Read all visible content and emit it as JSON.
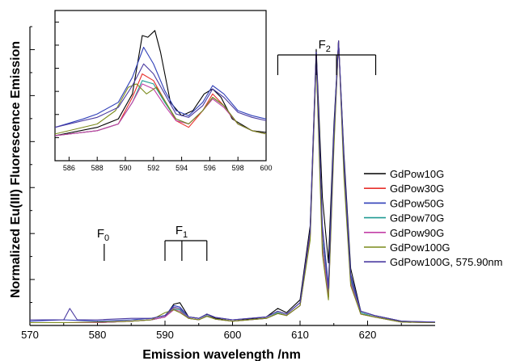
{
  "chart_data": {
    "type": "line",
    "title": "",
    "xlabel": "Emission wavelength /nm",
    "ylabel": "Normalized Eu(III) Fluorescence Emission",
    "xlim": [
      570,
      630
    ],
    "ylim": [
      0,
      1.05
    ],
    "xticks": [
      "570",
      "580",
      "590",
      "600",
      "610",
      "620"
    ],
    "y_tick_labels": false,
    "grid": false,
    "legend_position": "right",
    "colors": {
      "GdPow10G": "#000000",
      "GdPow30G": "#e8302c",
      "GdPow50G": "#2f3fb8",
      "GdPow70G": "#1f9a93",
      "GdPow90G": "#c23fa6",
      "GdPow100G": "#7a8a1a",
      "GdPow100G, 575.90nm": "#4a3aa0"
    },
    "series": [
      {
        "name": "GdPow10G",
        "x": [
          570,
          575,
          580,
          585,
          588,
          590,
          591.3,
          592.2,
          593.5,
          595,
          596.2,
          597.5,
          600,
          605,
          606.7,
          608,
          610,
          611.5,
          612.4,
          613.3,
          614.2,
          615,
          615.7,
          616.5,
          617.5,
          619,
          621,
          625,
          630
        ],
        "y": [
          0.01,
          0.01,
          0.01,
          0.015,
          0.02,
          0.03,
          0.075,
          0.08,
          0.03,
          0.025,
          0.04,
          0.025,
          0.015,
          0.03,
          0.06,
          0.045,
          0.09,
          0.35,
          0.97,
          0.45,
          0.22,
          0.7,
          1.0,
          0.6,
          0.2,
          0.05,
          0.035,
          0.015,
          0.01
        ]
      },
      {
        "name": "GdPow30G",
        "x": [
          570,
          575,
          580,
          585,
          588,
          590,
          591.3,
          592.2,
          593.5,
          595,
          596.2,
          597.5,
          600,
          605,
          606.7,
          608,
          610,
          611.5,
          612.4,
          613.3,
          614.2,
          615,
          615.7,
          616.5,
          617.5,
          619,
          621,
          625,
          630
        ],
        "y": [
          0.01,
          0.01,
          0.01,
          0.015,
          0.02,
          0.03,
          0.06,
          0.055,
          0.025,
          0.02,
          0.035,
          0.022,
          0.015,
          0.025,
          0.045,
          0.035,
          0.07,
          0.32,
          0.95,
          0.3,
          0.1,
          0.65,
          1.0,
          0.55,
          0.15,
          0.04,
          0.03,
          0.012,
          0.01
        ]
      },
      {
        "name": "GdPow50G",
        "x": [
          570,
          575,
          580,
          585,
          588,
          590,
          591.3,
          592.2,
          593.5,
          595,
          596.2,
          597.5,
          600,
          605,
          606.7,
          608,
          610,
          611.5,
          612.4,
          613.3,
          614.2,
          615,
          615.7,
          616.5,
          617.5,
          619,
          621,
          625,
          630
        ],
        "y": [
          0.015,
          0.02,
          0.015,
          0.02,
          0.025,
          0.035,
          0.07,
          0.065,
          0.03,
          0.025,
          0.04,
          0.028,
          0.02,
          0.03,
          0.05,
          0.04,
          0.08,
          0.33,
          0.96,
          0.35,
          0.14,
          0.68,
          1.0,
          0.58,
          0.18,
          0.05,
          0.035,
          0.015,
          0.012
        ]
      },
      {
        "name": "GdPow70G",
        "x": [
          570,
          575,
          580,
          585,
          588,
          590,
          591.3,
          592.2,
          593.5,
          595,
          596.2,
          597.5,
          600,
          605,
          606.7,
          608,
          610,
          611.5,
          612.4,
          613.3,
          614.2,
          615,
          615.7,
          616.5,
          617.5,
          619,
          621,
          625,
          630
        ],
        "y": [
          0.01,
          0.01,
          0.01,
          0.015,
          0.02,
          0.03,
          0.058,
          0.055,
          0.025,
          0.02,
          0.035,
          0.022,
          0.015,
          0.025,
          0.045,
          0.035,
          0.07,
          0.32,
          0.94,
          0.3,
          0.12,
          0.66,
          1.0,
          0.56,
          0.16,
          0.045,
          0.03,
          0.012,
          0.01
        ]
      },
      {
        "name": "GdPow90G",
        "x": [
          570,
          575,
          580,
          585,
          588,
          590,
          591.3,
          592.2,
          593.5,
          595,
          596.2,
          597.5,
          600,
          605,
          606.7,
          608,
          610,
          611.5,
          612.4,
          613.3,
          614.2,
          615,
          615.7,
          616.5,
          617.5,
          619,
          621,
          625,
          630
        ],
        "y": [
          0.01,
          0.01,
          0.01,
          0.015,
          0.02,
          0.03,
          0.055,
          0.05,
          0.025,
          0.02,
          0.033,
          0.022,
          0.015,
          0.025,
          0.042,
          0.035,
          0.07,
          0.31,
          0.95,
          0.28,
          0.1,
          0.64,
          1.0,
          0.55,
          0.15,
          0.04,
          0.03,
          0.012,
          0.01
        ]
      },
      {
        "name": "GdPow100G",
        "x": [
          570,
          575,
          580,
          585,
          588,
          590,
          591.3,
          592.2,
          593.5,
          595,
          596.2,
          597.5,
          600,
          605,
          606.7,
          608,
          610,
          611.5,
          612.4,
          613.3,
          614.2,
          615,
          615.7,
          616.5,
          617.5,
          619,
          621,
          625,
          630
        ],
        "y": [
          0.01,
          0.01,
          0.012,
          0.015,
          0.02,
          0.045,
          0.055,
          0.045,
          0.025,
          0.02,
          0.032,
          0.022,
          0.015,
          0.025,
          0.042,
          0.035,
          0.07,
          0.3,
          0.93,
          0.25,
          0.09,
          0.62,
          1.0,
          0.52,
          0.14,
          0.04,
          0.03,
          0.012,
          0.01
        ]
      },
      {
        "name": "GdPow100G, 575.90nm",
        "x": [
          570,
          575,
          575.9,
          577,
          580,
          585,
          588,
          590,
          591.3,
          592.2,
          593.5,
          595,
          596.2,
          597.5,
          600,
          605,
          606.7,
          608,
          610,
          611.5,
          612.4,
          613.3,
          614.2,
          615,
          615.7,
          616.5,
          617.5,
          619,
          621,
          625,
          630
        ],
        "y": [
          0.02,
          0.02,
          0.06,
          0.02,
          0.02,
          0.025,
          0.025,
          0.035,
          0.065,
          0.06,
          0.03,
          0.025,
          0.04,
          0.028,
          0.02,
          0.03,
          0.05,
          0.04,
          0.08,
          0.33,
          0.96,
          0.34,
          0.13,
          0.67,
          1.0,
          0.57,
          0.17,
          0.05,
          0.035,
          0.015,
          0.012
        ]
      }
    ],
    "annotations": [
      {
        "label": "F",
        "subscript": "0",
        "lines_x": [
          581
        ]
      },
      {
        "label": "F",
        "subscript": "1",
        "lines_x": [
          590,
          592.5,
          596.2
        ]
      },
      {
        "label": "F",
        "subscript": "2",
        "lines_x": [
          606.7,
          612.4,
          615.4,
          621.2
        ]
      }
    ],
    "inset": {
      "type": "line",
      "xlim": [
        585,
        600
      ],
      "ylim": [
        0,
        0.09
      ],
      "xticks": [
        "586",
        "588",
        "590",
        "592",
        "594",
        "596",
        "598",
        "600"
      ],
      "series": [
        {
          "name": "GdPow10G",
          "x": [
            585,
            588,
            589.5,
            590.5,
            591.2,
            591.6,
            592.1,
            592.5,
            593.2,
            594,
            594.8,
            595.6,
            596.2,
            596.8,
            597.6,
            599,
            600
          ],
          "y": [
            0.015,
            0.02,
            0.025,
            0.04,
            0.075,
            0.074,
            0.078,
            0.065,
            0.035,
            0.027,
            0.03,
            0.04,
            0.043,
            0.038,
            0.025,
            0.018,
            0.017
          ]
        },
        {
          "name": "GdPow30G",
          "x": [
            585,
            588,
            589.5,
            590.5,
            591.2,
            592,
            592.8,
            593.6,
            594.5,
            595.5,
            596.2,
            597,
            598,
            599,
            600
          ],
          "y": [
            0.015,
            0.018,
            0.022,
            0.038,
            0.052,
            0.048,
            0.036,
            0.024,
            0.02,
            0.03,
            0.04,
            0.033,
            0.022,
            0.018,
            0.016
          ]
        },
        {
          "name": "GdPow50G",
          "x": [
            585,
            587,
            588,
            589.5,
            590.5,
            591.3,
            592,
            592.8,
            593.6,
            594.5,
            595.5,
            596.2,
            597,
            598,
            599,
            600
          ],
          "y": [
            0.02,
            0.025,
            0.028,
            0.035,
            0.05,
            0.068,
            0.058,
            0.042,
            0.03,
            0.027,
            0.035,
            0.045,
            0.04,
            0.03,
            0.027,
            0.025
          ]
        },
        {
          "name": "GdPow70G",
          "x": [
            585,
            588,
            589.5,
            590.5,
            591.2,
            592,
            592.8,
            593.6,
            594.5,
            595.5,
            596.2,
            597,
            598,
            599,
            600
          ],
          "y": [
            0.015,
            0.018,
            0.022,
            0.035,
            0.048,
            0.046,
            0.035,
            0.025,
            0.022,
            0.03,
            0.038,
            0.033,
            0.022,
            0.018,
            0.016
          ]
        },
        {
          "name": "GdPow90G",
          "x": [
            585,
            588,
            589.5,
            590.5,
            591.2,
            592,
            592.8,
            593.6,
            594.5,
            595.5,
            596.2,
            597,
            598,
            599,
            600
          ],
          "y": [
            0.015,
            0.018,
            0.022,
            0.035,
            0.046,
            0.043,
            0.033,
            0.024,
            0.022,
            0.03,
            0.037,
            0.032,
            0.022,
            0.018,
            0.016
          ]
        },
        {
          "name": "GdPow100G",
          "x": [
            585,
            588,
            589.3,
            590.2,
            590.8,
            591.5,
            592.2,
            592.8,
            593.6,
            594.5,
            595.5,
            596.2,
            597,
            598,
            599,
            600
          ],
          "y": [
            0.016,
            0.022,
            0.03,
            0.044,
            0.046,
            0.04,
            0.044,
            0.036,
            0.025,
            0.022,
            0.03,
            0.038,
            0.033,
            0.022,
            0.018,
            0.016
          ]
        },
        {
          "name": "GdPow100G, 575.90nm",
          "x": [
            585,
            587,
            588,
            589.5,
            590.5,
            591.3,
            592,
            592.8,
            593.6,
            594.5,
            595.5,
            596.2,
            597,
            598,
            599,
            600
          ],
          "y": [
            0.02,
            0.024,
            0.026,
            0.032,
            0.045,
            0.058,
            0.052,
            0.04,
            0.028,
            0.026,
            0.033,
            0.043,
            0.038,
            0.029,
            0.026,
            0.024
          ]
        }
      ]
    }
  }
}
